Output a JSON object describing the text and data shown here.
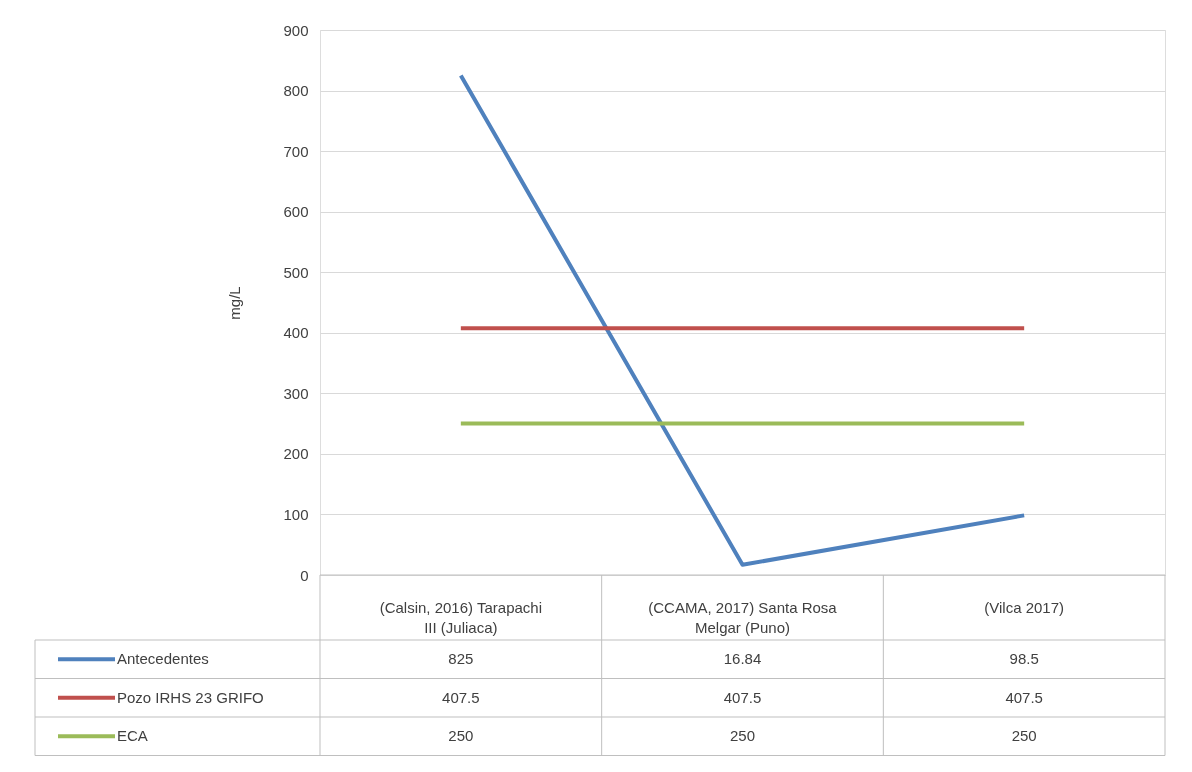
{
  "chart_data": {
    "type": "line",
    "ylabel": "mg/L",
    "categories": [
      "(Calsin, 2016) Tarapachi III (Juliaca)",
      "(CCAMA, 2017) Santa Rosa Melgar (Puno)",
      "(Vilca 2017)"
    ],
    "series": [
      {
        "name": "Antecedentes",
        "color": "#4f81bd",
        "values": [
          825,
          16.84,
          98.5
        ]
      },
      {
        "name": "Pozo IRHS 23 GRIFO",
        "color": "#c0504d",
        "values": [
          407.5,
          407.5,
          407.5
        ]
      },
      {
        "name": "ECA",
        "color": "#9bbb59",
        "values": [
          250,
          250,
          250
        ]
      }
    ],
    "ylim": [
      0,
      900
    ],
    "yticks": [
      0,
      100,
      200,
      300,
      400,
      500,
      600,
      700,
      800,
      900
    ],
    "grid": "y",
    "legend": "bottom",
    "data_labels": true,
    "marker": "none",
    "line_style": "solid"
  }
}
